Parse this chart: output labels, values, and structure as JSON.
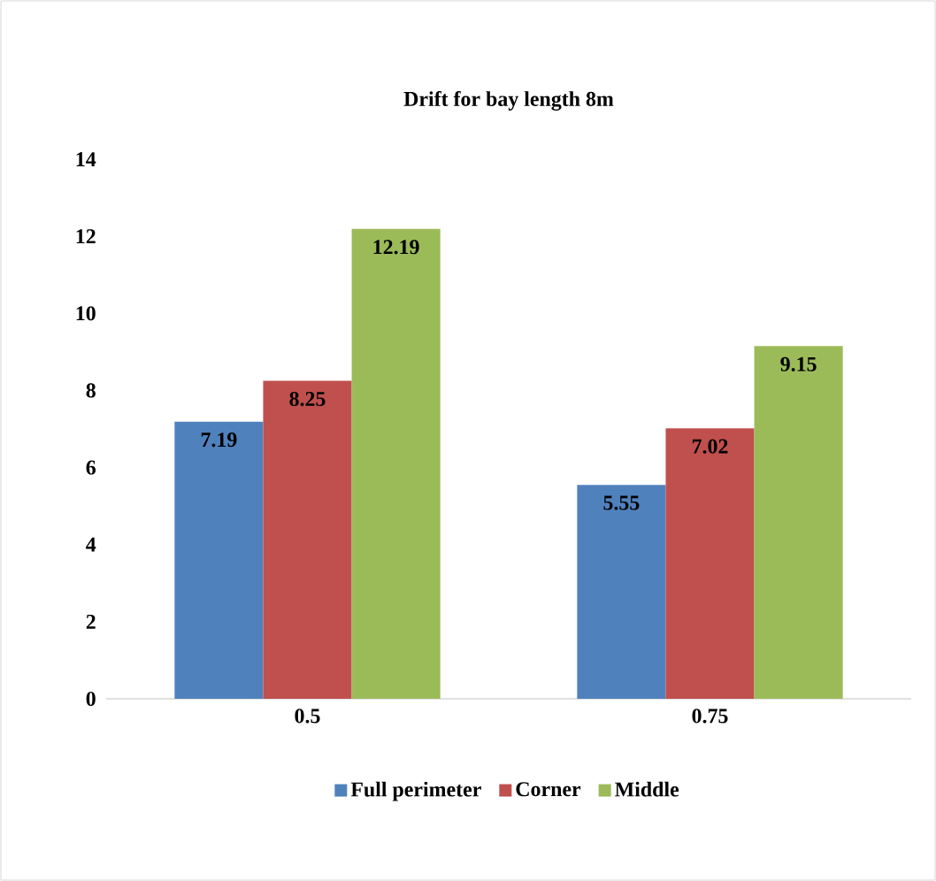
{
  "chart_data": {
    "type": "bar",
    "title": "Drift for bay length 8m",
    "categories": [
      "0.5",
      "0.75"
    ],
    "series": [
      {
        "name": "Full perimeter",
        "color": "#4f81bd",
        "values": [
          7.19,
          5.55
        ]
      },
      {
        "name": "Corner",
        "color": "#c0504d",
        "values": [
          8.25,
          7.02
        ]
      },
      {
        "name": "Middle",
        "color": "#9bbb59",
        "values": [
          12.19,
          9.15
        ]
      }
    ],
    "ylim": [
      0,
      14
    ],
    "yticks": [
      0,
      2,
      4,
      6,
      8,
      10,
      12,
      14
    ],
    "grid": false,
    "legend": "bottom",
    "data_labels": true
  }
}
